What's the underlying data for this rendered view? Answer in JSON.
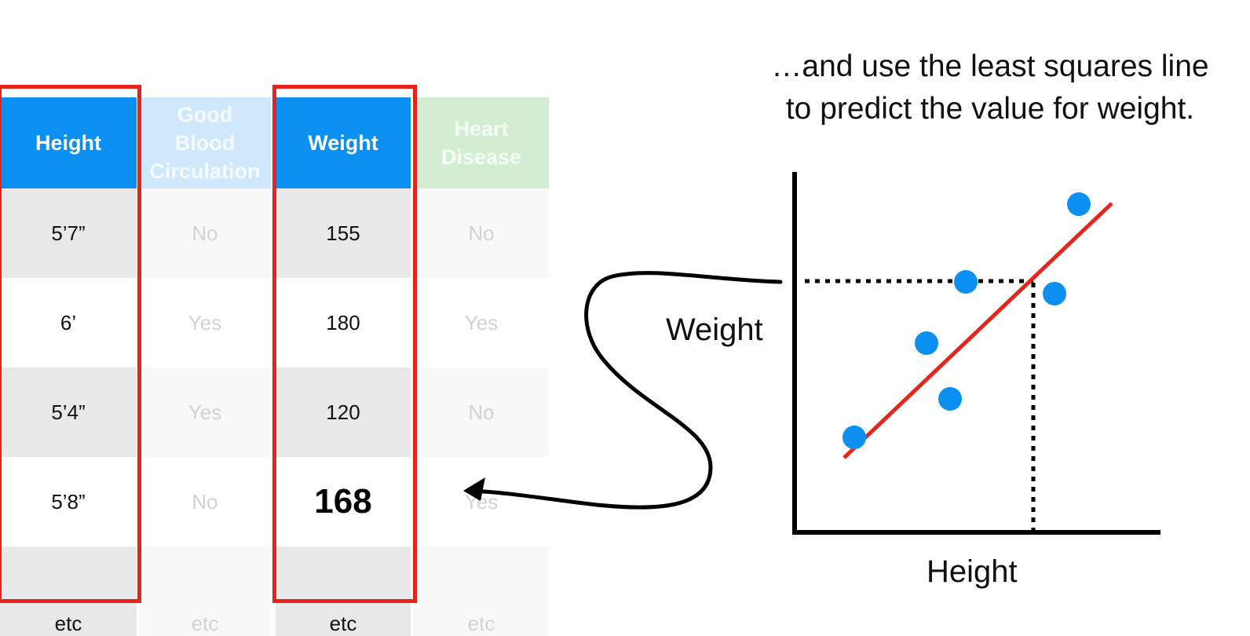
{
  "caption": "…and use the least squares line\nto predict the value for weight.",
  "table": {
    "headers": [
      "Height",
      "Good\nBlood\nCirculation",
      "Weight",
      "Heart\nDisease"
    ],
    "header_colors": [
      "#0b8ff0",
      "#cfe8fb",
      "#0b8ff0",
      "#d3edd2"
    ],
    "rows": [
      [
        "5’7”",
        "No",
        "155",
        "No"
      ],
      [
        "6’",
        "Yes",
        "180",
        "Yes"
      ],
      [
        "5’4”",
        "Yes",
        "120",
        "No"
      ],
      [
        "5’8”",
        "No",
        "168",
        "Yes"
      ],
      [
        "etc",
        "etc",
        "etc",
        "etc"
      ]
    ]
  },
  "plot": {
    "xlabel": "Height",
    "ylabel": "Weight",
    "point_color": "#0b8ff0",
    "line_color": "#e5251b"
  }
}
